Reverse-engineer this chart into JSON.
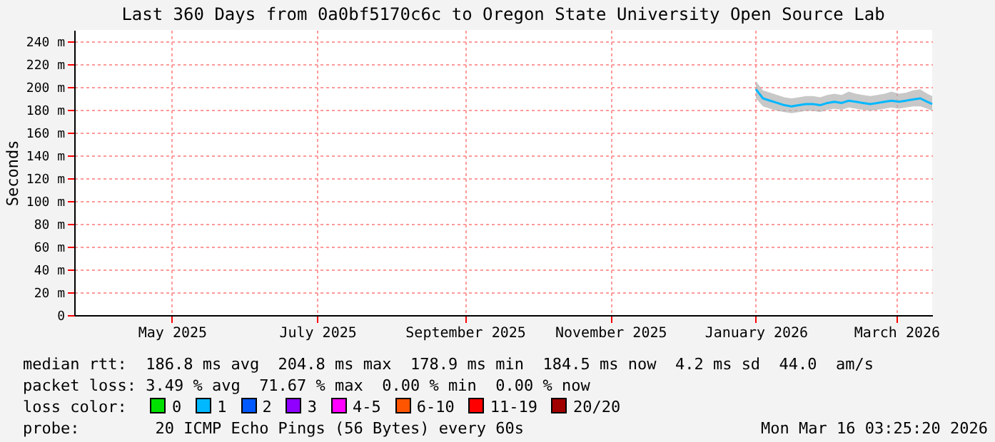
{
  "chart_data": {
    "type": "line",
    "title": "Last 360 Days from 0a0bf5170c6c to Oregon State University Open Source Lab",
    "ylabel": "Seconds",
    "x": [
      "2026-01-01",
      "2026-01-04",
      "2026-01-07",
      "2026-01-10",
      "2026-01-13",
      "2026-01-16",
      "2026-01-19",
      "2026-01-22",
      "2026-01-25",
      "2026-01-28",
      "2026-01-31",
      "2026-02-03",
      "2026-02-06",
      "2026-02-09",
      "2026-02-12",
      "2026-02-15",
      "2026-02-18",
      "2026-02-21",
      "2026-02-24",
      "2026-02-27",
      "2026-03-02",
      "2026-03-05",
      "2026-03-08",
      "2026-03-11",
      "2026-03-14",
      "2026-03-16"
    ],
    "series": [
      {
        "name": "0",
        "color": "#00e000",
        "values": [
          null,
          null,
          null,
          null,
          null,
          null,
          null,
          null,
          null,
          null,
          null,
          null,
          null,
          null,
          null,
          null,
          null,
          null,
          null,
          null,
          null,
          null,
          null,
          null,
          null,
          null
        ]
      },
      {
        "name": "1",
        "color": "#00b8ff",
        "values": [
          198,
          190,
          188,
          186,
          184,
          183,
          184,
          185,
          185,
          184,
          186,
          187,
          186,
          188,
          187,
          186,
          185,
          186,
          187,
          188,
          187,
          188,
          189,
          190,
          187,
          185
        ],
        "lower": [
          190,
          183,
          181,
          179,
          178,
          177,
          178,
          179,
          179,
          178,
          180,
          181,
          180,
          182,
          181,
          180,
          179,
          180,
          181,
          182,
          181,
          182,
          183,
          183,
          181,
          179
        ],
        "upper": [
          205,
          197,
          195,
          193,
          191,
          190,
          191,
          192,
          192,
          191,
          193,
          194,
          193,
          196,
          194,
          193,
          192,
          193,
          194,
          196,
          194,
          195,
          197,
          198,
          194,
          192
        ]
      },
      {
        "name": "2",
        "color": "#0059ff",
        "values": [
          null,
          null,
          null,
          null,
          null,
          null,
          null,
          null,
          null,
          null,
          null,
          null,
          null,
          null,
          null,
          null,
          null,
          null,
          null,
          null,
          null,
          null,
          null,
          null,
          null,
          null
        ]
      },
      {
        "name": "3",
        "color": "#8f00ff",
        "values": [
          null,
          null,
          null,
          null,
          null,
          null,
          null,
          null,
          null,
          null,
          null,
          null,
          null,
          null,
          null,
          null,
          null,
          null,
          null,
          null,
          null,
          null,
          null,
          null,
          null,
          null
        ]
      },
      {
        "name": "4-5",
        "color": "#ff00ff",
        "values": [
          null,
          null,
          null,
          null,
          null,
          null,
          null,
          null,
          null,
          null,
          null,
          null,
          null,
          null,
          null,
          null,
          null,
          null,
          null,
          null,
          null,
          null,
          null,
          null,
          null,
          null
        ]
      },
      {
        "name": "6-10",
        "color": "#ff5500",
        "values": [
          null,
          null,
          null,
          null,
          null,
          null,
          null,
          null,
          null,
          null,
          null,
          null,
          null,
          null,
          null,
          null,
          null,
          null,
          null,
          null,
          null,
          null,
          null,
          null,
          null,
          null
        ]
      },
      {
        "name": "11-19",
        "color": "#ff0000",
        "values": [
          null,
          null,
          null,
          null,
          null,
          null,
          null,
          null,
          null,
          null,
          null,
          null,
          null,
          null,
          null,
          null,
          null,
          null,
          null,
          null,
          null,
          null,
          null,
          null,
          null,
          null
        ]
      },
      {
        "name": "20/20",
        "color": "#a10000",
        "values": [
          null,
          null,
          null,
          null,
          null,
          null,
          null,
          null,
          null,
          null,
          null,
          null,
          null,
          null,
          null,
          null,
          null,
          null,
          null,
          null,
          null,
          null,
          null,
          null,
          null,
          null
        ]
      }
    ],
    "legend_title": "loss color:",
    "legend": "bottom",
    "grid": true,
    "xlim": [
      "2025-03-21",
      "2026-03-16"
    ],
    "xticks": [
      {
        "value": "2025-05-01",
        "label": "May 2025"
      },
      {
        "value": "2025-07-01",
        "label": "July 2025"
      },
      {
        "value": "2025-09-01",
        "label": "September 2025"
      },
      {
        "value": "2025-11-01",
        "label": "November 2025"
      },
      {
        "value": "2026-01-01",
        "label": "January 2026"
      },
      {
        "value": "2026-03-01",
        "label": "March 2026"
      }
    ],
    "ylim": [
      0,
      250
    ],
    "yticks": [
      {
        "value": 0,
        "label": "0"
      },
      {
        "value": 20,
        "label": "20 m"
      },
      {
        "value": 40,
        "label": "40 m"
      },
      {
        "value": 60,
        "label": "60 m"
      },
      {
        "value": 80,
        "label": "80 m"
      },
      {
        "value": 100,
        "label": "100 m"
      },
      {
        "value": 120,
        "label": "120 m"
      },
      {
        "value": 140,
        "label": "140 m"
      },
      {
        "value": 160,
        "label": "160 m"
      },
      {
        "value": 180,
        "label": "180 m"
      },
      {
        "value": 200,
        "label": "200 m"
      },
      {
        "value": 220,
        "label": "220 m"
      },
      {
        "value": 240,
        "label": "240 m"
      }
    ],
    "annotations": [
      "median rtt:  186.8 ms avg  204.8 ms max  178.9 ms min  184.5 ms now  4.2 ms sd  44.0  am/s",
      "packet loss: 3.49 % avg  71.67 % max  0.00 % min  0.00 % now",
      "probe:        20 ICMP Echo Pings (56 Bytes) every 60s",
      "Mon Mar 16 03:25:20 2026"
    ]
  }
}
